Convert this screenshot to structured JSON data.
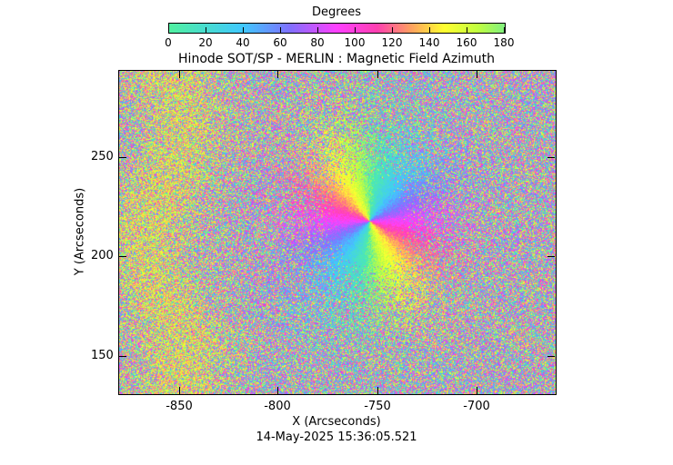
{
  "colorbar": {
    "title": "Degrees",
    "ticks": [
      "0",
      "20",
      "40",
      "60",
      "80",
      "100",
      "120",
      "140",
      "160",
      "180"
    ]
  },
  "plot": {
    "title": "Hinode SOT/SP - MERLIN : Magnetic Field Azimuth",
    "xlabel": "X (Arcseconds)",
    "ylabel": "Y (Arcseconds)",
    "xticks": [
      "-850",
      "-800",
      "-750",
      "-700"
    ],
    "yticks": [
      "250",
      "200",
      "150"
    ],
    "timestamp": "14-May-2025 15:36:05.521"
  }
}
